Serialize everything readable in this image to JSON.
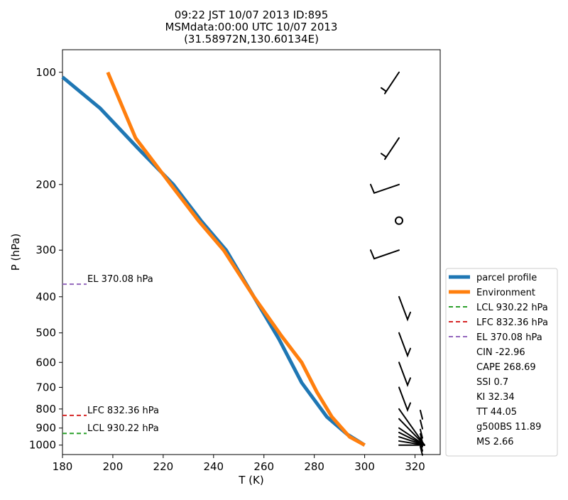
{
  "chart_data": {
    "type": "line",
    "title_lines": [
      "09:22 JST 10/07 2013  ID:895",
      "MSMdata:00:00 UTC 10/07 2013",
      "(31.58972N,130.60134E)"
    ],
    "xlabel": "T (K)",
    "ylabel": "P (hPa)",
    "xlim": [
      180,
      330
    ],
    "ylim": [
      1060,
      87
    ],
    "yscale": "log",
    "xticks": [
      180,
      200,
      220,
      240,
      260,
      280,
      300,
      320
    ],
    "yticks": [
      100,
      200,
      300,
      400,
      500,
      600,
      700,
      800,
      900,
      1000
    ],
    "grid": false,
    "legend_position": "right",
    "colors": {
      "parcel": "#1f77b4",
      "environment": "#ff7f0e",
      "lcl": "#2ca02c",
      "lfc": "#d62728",
      "el": "#9467bd",
      "barb": "#000000"
    },
    "series": [
      {
        "name": "parcel profile",
        "color": "#1f77b4",
        "points": [
          [
            300,
            1000
          ],
          [
            293,
            935
          ],
          [
            285,
            840
          ],
          [
            275,
            680
          ],
          [
            266,
            520
          ],
          [
            256,
            400
          ],
          [
            245,
            300
          ],
          [
            235,
            250
          ],
          [
            224,
            200
          ],
          [
            210,
            160
          ],
          [
            195,
            125
          ],
          [
            180,
            103
          ]
        ]
      },
      {
        "name": "Environment",
        "color": "#ff7f0e",
        "points": [
          [
            300,
            1000
          ],
          [
            294,
            950
          ],
          [
            287,
            840
          ],
          [
            281,
            720
          ],
          [
            275,
            600
          ],
          [
            267,
            510
          ],
          [
            256,
            400
          ],
          [
            244,
            300
          ],
          [
            234,
            250
          ],
          [
            223,
            200
          ],
          [
            209,
            150
          ],
          [
            198,
            100
          ]
        ]
      }
    ],
    "levels": [
      {
        "name": "LCL 930.22 hPa",
        "value": 930.22,
        "color": "#2ca02c"
      },
      {
        "name": "LFC 832.36 hPa",
        "value": 832.36,
        "color": "#d62728"
      },
      {
        "name": "EL 370.08 hPa",
        "value": 370.08,
        "color": "#9467bd"
      }
    ],
    "indices": [
      "CIN -22.96",
      "CAPE 268.69",
      "SSI 0.7",
      "KI 32.34",
      "TT 44.05",
      "g500BS 11.89",
      "MS 2.66"
    ],
    "wind_barb_pressures": [
      100,
      150,
      200,
      250,
      300,
      400,
      500,
      600,
      700,
      800,
      850,
      900,
      925,
      950,
      975,
      1000
    ]
  }
}
